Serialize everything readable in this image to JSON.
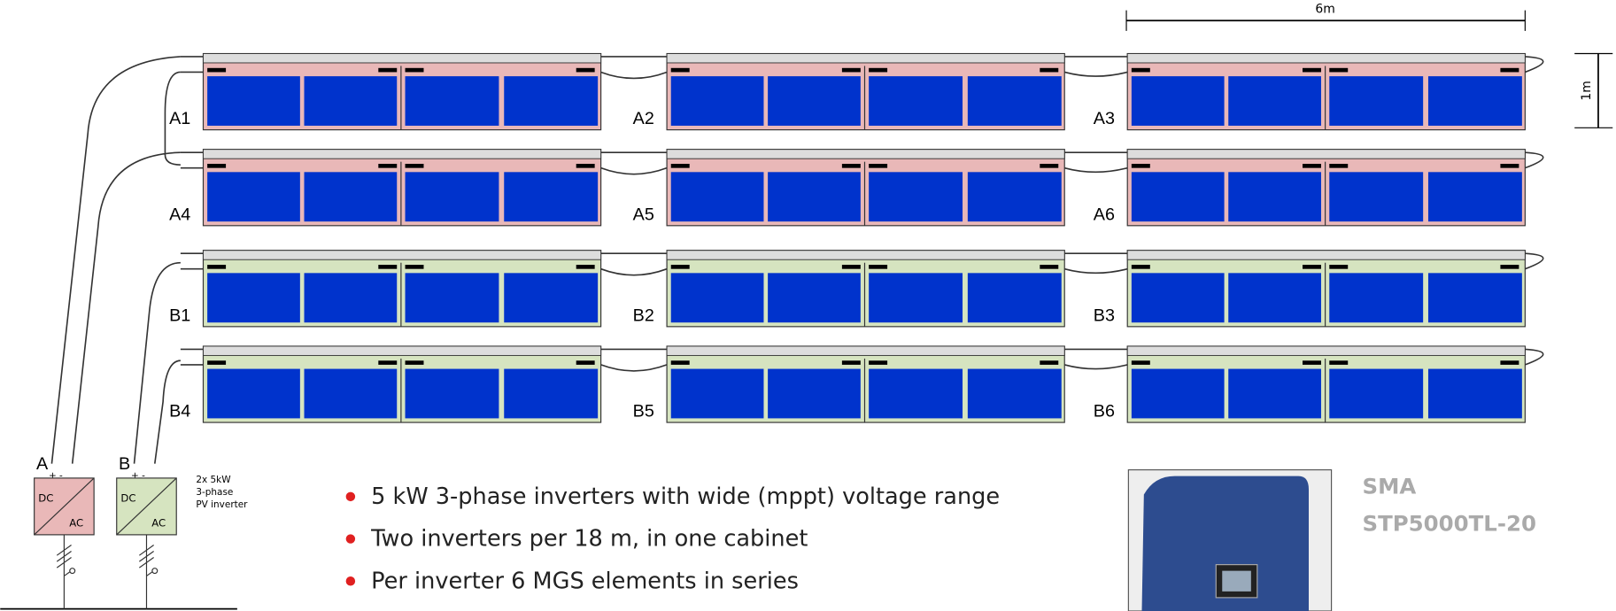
{
  "dimensions": {
    "width": "6m",
    "height": "1m"
  },
  "module_rows": [
    {
      "labels": [
        "A1",
        "A2",
        "A3"
      ],
      "color": "#e9b8b8"
    },
    {
      "labels": [
        "A4",
        "A5",
        "A6"
      ],
      "color": "#e9b8b8"
    },
    {
      "labels": [
        "B1",
        "B2",
        "B3"
      ],
      "color": "#d6e4c0"
    },
    {
      "labels": [
        "B4",
        "B5",
        "B6"
      ],
      "color": "#d6e4c0"
    }
  ],
  "inverters": [
    {
      "label": "A",
      "polarity": "+ -",
      "dc": "DC",
      "ac": "AC",
      "color": "#e9b8b8"
    },
    {
      "label": "B",
      "polarity": "+ -",
      "dc": "DC",
      "ac": "AC",
      "color": "#d6e4c0"
    }
  ],
  "inverter_note": [
    "2x 5kW",
    "3-phase",
    "PV inverter"
  ],
  "bullets": [
    "5 kW 3-phase inverters with wide (mppt) voltage range",
    "Two inverters per 18 m, in one cabinet",
    "Per inverter 6 MGS elements in series"
  ],
  "product": [
    "SMA",
    "STP5000TL-20"
  ]
}
